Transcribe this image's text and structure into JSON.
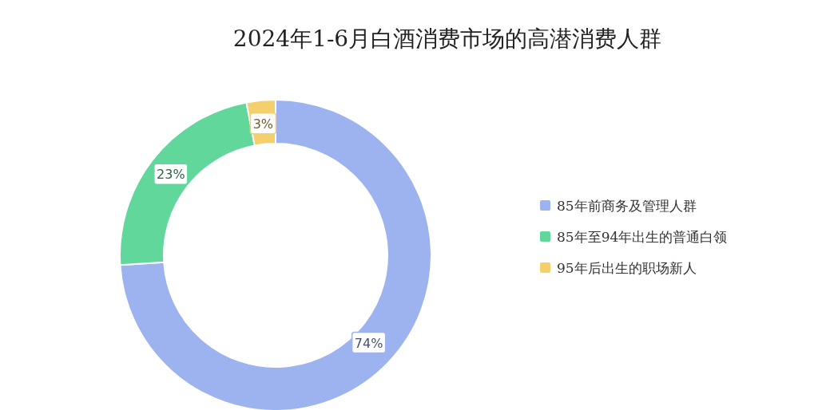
{
  "chart_data": {
    "type": "donut",
    "title": "2024年1-6月白酒消费市场的高潜消费人群",
    "categories": [
      "85年前商务及管理人群",
      "85年至94年出生的普通白领",
      "95年后出生的职场新人"
    ],
    "values": [
      74,
      23,
      3
    ],
    "colors": [
      "#9db3ef",
      "#62d79c",
      "#f4cf6b"
    ],
    "value_labels": [
      "74%",
      "23%",
      "3%"
    ],
    "legend": "right"
  }
}
